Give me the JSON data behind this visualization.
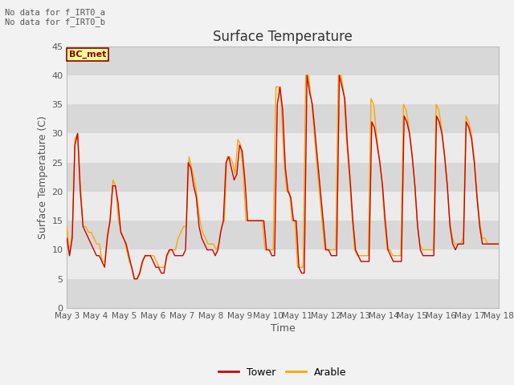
{
  "title": "Surface Temperature",
  "xlabel": "Time",
  "ylabel": "Surface Temperature (C)",
  "ylim": [
    0,
    45
  ],
  "annotation_text": "No data for f_IRT0_a\nNo data for f_IRT0_b",
  "legend_box_label": "BC_met",
  "legend_box_color": "#FFFF99",
  "legend_box_border": "#8B0000",
  "line_tower_color": "#CC0000",
  "line_arable_color": "#FFA500",
  "background_light": "#EBEBEB",
  "background_dark": "#D8D8D8",
  "tick_labels": [
    "May 3",
    "May 4",
    "May 5",
    "May 6",
    "May 7",
    "May 8",
    "May 9",
    "May 10",
    "May 11",
    "May 12",
    "May 13",
    "May 14",
    "May 15",
    "May 16",
    "May 17",
    "May 18"
  ],
  "tower_data": [
    12,
    9,
    12,
    28,
    30,
    20,
    14,
    13,
    12,
    11,
    10,
    9,
    9,
    8,
    7,
    12,
    15,
    21,
    21,
    18,
    13,
    12,
    11,
    9,
    7,
    5,
    5,
    6,
    8,
    9,
    9,
    9,
    8,
    7,
    7,
    6,
    6,
    9,
    10,
    10,
    9,
    9,
    9,
    9,
    10,
    25,
    24,
    21,
    19,
    14,
    12,
    11,
    10,
    10,
    10,
    9,
    10,
    13,
    15,
    25,
    26,
    24,
    22,
    23,
    28,
    27,
    22,
    15,
    15,
    15,
    15,
    15,
    15,
    15,
    10,
    10,
    9,
    9,
    35,
    38,
    34,
    24,
    20,
    19,
    15,
    15,
    7,
    6,
    6,
    40,
    37,
    35,
    30,
    25,
    20,
    15,
    10,
    10,
    9,
    9,
    9,
    40,
    38,
    36,
    28,
    22,
    15,
    10,
    9,
    8,
    8,
    8,
    8,
    32,
    31,
    28,
    25,
    21,
    15,
    10,
    9,
    8,
    8,
    8,
    8,
    33,
    32,
    30,
    26,
    21,
    14,
    10,
    9,
    9,
    9,
    9,
    9,
    33,
    32,
    30,
    26,
    21,
    14,
    11,
    10,
    11,
    11,
    11,
    32,
    31,
    29,
    25,
    19,
    14,
    11,
    11,
    11,
    11,
    11,
    11,
    11
  ],
  "arable_data": [
    14,
    9,
    13,
    29,
    30,
    21,
    14,
    14,
    13,
    13,
    12,
    11,
    11,
    8,
    8,
    13,
    15,
    22,
    21,
    15,
    13,
    12,
    10,
    8,
    7,
    5,
    5,
    6,
    8,
    9,
    9,
    9,
    9,
    8,
    7,
    7,
    7,
    9,
    10,
    10,
    10,
    12,
    13,
    14,
    14,
    26,
    24,
    22,
    19,
    15,
    13,
    12,
    11,
    11,
    11,
    10,
    11,
    14,
    15,
    26,
    26,
    25,
    23,
    29,
    28,
    23,
    15,
    15,
    15,
    15,
    15,
    15,
    15,
    10,
    10,
    10,
    10,
    38,
    38,
    35,
    25,
    20,
    20,
    15,
    15,
    7,
    7,
    7,
    40,
    40,
    36,
    31,
    25,
    20,
    15,
    10,
    10,
    10,
    10,
    10,
    40,
    40,
    37,
    29,
    23,
    16,
    10,
    9,
    9,
    9,
    9,
    9,
    36,
    35,
    30,
    26,
    22,
    15,
    10,
    10,
    9,
    9,
    9,
    9,
    35,
    34,
    31,
    27,
    22,
    15,
    11,
    10,
    10,
    10,
    10,
    10,
    35,
    34,
    31,
    27,
    22,
    15,
    12,
    11,
    11,
    11,
    12,
    33,
    32,
    30,
    26,
    20,
    15,
    12,
    12,
    11,
    11,
    11,
    11,
    11
  ],
  "yticks": [
    0,
    5,
    10,
    15,
    20,
    25,
    30,
    35,
    40,
    45
  ]
}
